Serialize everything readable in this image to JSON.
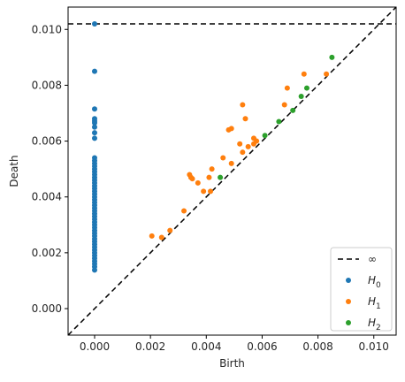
{
  "chart_data": {
    "type": "scatter",
    "xlabel": "Birth",
    "ylabel": "Death",
    "xlim": [
      -0.00095,
      0.0108
    ],
    "ylim": [
      -0.00095,
      0.0108
    ],
    "x_ticks": [
      0.0,
      0.002,
      0.004,
      0.006,
      0.008,
      0.01
    ],
    "x_tick_labels": [
      "0.000",
      "0.002",
      "0.004",
      "0.006",
      "0.008",
      "0.010"
    ],
    "y_ticks": [
      0.0,
      0.002,
      0.004,
      0.006,
      0.008,
      0.01
    ],
    "y_tick_labels": [
      "0.000",
      "0.002",
      "0.004",
      "0.006",
      "0.008",
      "0.010"
    ],
    "grid": false,
    "legend_position": "lower-right",
    "infinity_line": {
      "y": 0.0102,
      "label": "∞",
      "color": "#000000",
      "style": "dashed"
    },
    "diagonal": {
      "color": "#000000",
      "style": "dashed"
    },
    "series": [
      {
        "name": "H0",
        "name_base": "H",
        "name_sub": "0",
        "color": "#1f77b4",
        "points": [
          [
            0,
            0.0102
          ],
          [
            0,
            0.0085
          ],
          [
            0,
            0.00715
          ],
          [
            0,
            0.0068
          ],
          [
            0,
            0.00672
          ],
          [
            0,
            0.00665
          ],
          [
            0,
            0.0065
          ],
          [
            0,
            0.0063
          ],
          [
            0,
            0.0061
          ],
          [
            0,
            0.0054
          ],
          [
            0,
            0.0053
          ],
          [
            0,
            0.0052
          ],
          [
            0,
            0.0051
          ],
          [
            0,
            0.005
          ],
          [
            0,
            0.0049
          ],
          [
            0,
            0.0048
          ],
          [
            0,
            0.0047
          ],
          [
            0,
            0.0046
          ],
          [
            0,
            0.0045
          ],
          [
            0,
            0.0044
          ],
          [
            0,
            0.0043
          ],
          [
            0,
            0.0042
          ],
          [
            0,
            0.0041
          ],
          [
            0,
            0.004
          ],
          [
            0,
            0.0039
          ],
          [
            0,
            0.0038
          ],
          [
            0,
            0.0037
          ],
          [
            0,
            0.0036
          ],
          [
            0,
            0.0035
          ],
          [
            0,
            0.0034
          ],
          [
            0,
            0.0033
          ],
          [
            0,
            0.0032
          ],
          [
            0,
            0.0031
          ],
          [
            0,
            0.003
          ],
          [
            0,
            0.0029
          ],
          [
            0,
            0.0028
          ],
          [
            0,
            0.0027
          ],
          [
            0,
            0.0026
          ],
          [
            0,
            0.0025
          ],
          [
            0,
            0.0024
          ],
          [
            0,
            0.0023
          ],
          [
            0,
            0.0022
          ],
          [
            0,
            0.0021
          ],
          [
            0,
            0.002
          ],
          [
            0,
            0.0019
          ],
          [
            0,
            0.0018
          ],
          [
            0,
            0.0017
          ],
          [
            0,
            0.0016
          ],
          [
            0,
            0.0015
          ],
          [
            0,
            0.00138
          ]
        ]
      },
      {
        "name": "H1",
        "name_base": "H",
        "name_sub": "1",
        "color": "#ff7f0e",
        "points": [
          [
            0.00205,
            0.0026
          ],
          [
            0.0024,
            0.00255
          ],
          [
            0.0027,
            0.0028
          ],
          [
            0.0032,
            0.0035
          ],
          [
            0.0034,
            0.0048
          ],
          [
            0.00345,
            0.0047
          ],
          [
            0.0035,
            0.00465
          ],
          [
            0.0037,
            0.0045
          ],
          [
            0.0039,
            0.0042
          ],
          [
            0.0041,
            0.0047
          ],
          [
            0.00415,
            0.0042
          ],
          [
            0.0042,
            0.005
          ],
          [
            0.0046,
            0.0054
          ],
          [
            0.0048,
            0.0064
          ],
          [
            0.0049,
            0.00645
          ],
          [
            0.0049,
            0.0052
          ],
          [
            0.0052,
            0.0059
          ],
          [
            0.0053,
            0.0073
          ],
          [
            0.0053,
            0.0056
          ],
          [
            0.0054,
            0.0068
          ],
          [
            0.0055,
            0.0058
          ],
          [
            0.0057,
            0.0061
          ],
          [
            0.0058,
            0.006
          ],
          [
            0.0057,
            0.0059
          ],
          [
            0.0068,
            0.0073
          ],
          [
            0.0069,
            0.0079
          ],
          [
            0.0075,
            0.0084
          ],
          [
            0.0083,
            0.0084
          ]
        ]
      },
      {
        "name": "H2",
        "name_base": "H",
        "name_sub": "2",
        "color": "#2ca02c",
        "points": [
          [
            0.0045,
            0.0047
          ],
          [
            0.0061,
            0.0062
          ],
          [
            0.0066,
            0.0067
          ],
          [
            0.0071,
            0.0071
          ],
          [
            0.0074,
            0.0076
          ],
          [
            0.0076,
            0.0079
          ],
          [
            0.0085,
            0.009
          ]
        ]
      }
    ]
  }
}
